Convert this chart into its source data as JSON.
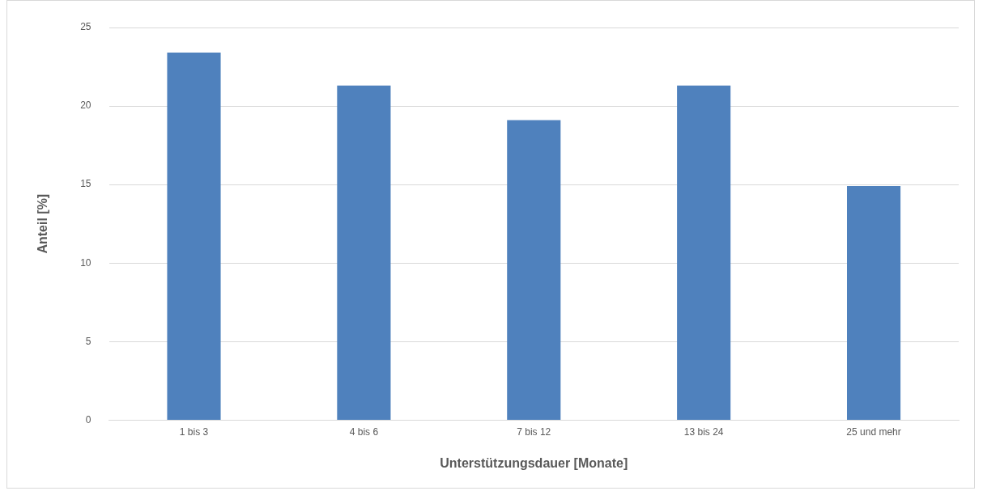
{
  "chart_data": {
    "type": "bar",
    "xlabel": "Unterstützungsdauer [Monate]",
    "ylabel": "Anteil [%]",
    "categories": [
      "1 bis 3",
      "4 bis 6",
      "7 bis 12",
      "13 bis 24",
      "25 und mehr"
    ],
    "values": [
      23.4,
      21.3,
      19.1,
      21.3,
      14.9
    ],
    "color": "#4f81bd",
    "ylim": [
      0,
      25
    ],
    "yticks": [
      0,
      5,
      10,
      15,
      20,
      25
    ],
    "grid": "y",
    "legend": false
  }
}
